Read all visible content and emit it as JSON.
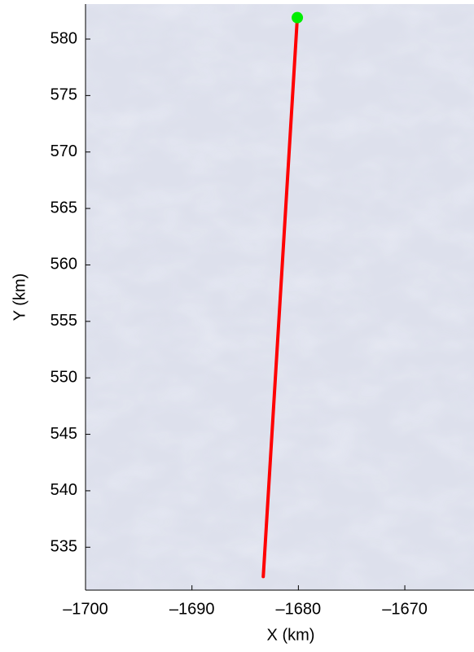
{
  "chart_data": {
    "type": "line",
    "xlabel": "X (km)",
    "ylabel": "Y (km)",
    "xlim": [
      -1700,
      -1663.5
    ],
    "ylim": [
      531.2,
      583.1
    ],
    "xticks": [
      {
        "value": -1700,
        "label": "–1700"
      },
      {
        "value": -1690,
        "label": "–1690"
      },
      {
        "value": -1680,
        "label": "–1680"
      },
      {
        "value": -1670,
        "label": "–1670"
      }
    ],
    "yticks": [
      535,
      540,
      545,
      550,
      555,
      560,
      565,
      570,
      575,
      580
    ],
    "series": [
      {
        "color": "#ff0000",
        "x": [
          -1683.3,
          -1680.1
        ],
        "values": [
          532.4,
          581.9
        ]
      },
      {
        "color": "#00ee00",
        "x": [
          -1680.1
        ],
        "values": [
          581.9
        ],
        "marker": "o"
      }
    ]
  }
}
